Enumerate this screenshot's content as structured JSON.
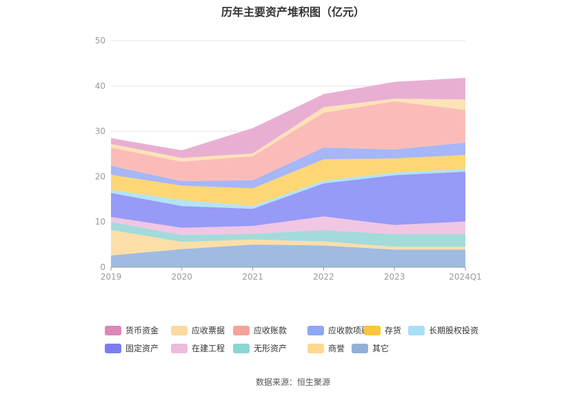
{
  "title": "历年主要资产堆积图（亿元）",
  "source": "数据来源：恒生聚源",
  "chart_data": {
    "type": "area",
    "stacked": true,
    "title": "历年主要资产堆积图（亿元）",
    "xlabel": "",
    "ylabel": "",
    "categories": [
      "2019",
      "2020",
      "2021",
      "2022",
      "2023",
      "2024Q1"
    ],
    "ylim": [
      0,
      50
    ],
    "yticks": [
      0,
      10,
      20,
      30,
      40,
      50
    ],
    "grid": true,
    "legend_position": "bottom",
    "series": [
      {
        "name": "其它",
        "color": "#9ab7e0",
        "values": [
          2.6,
          4.0,
          5.0,
          4.8,
          3.9,
          3.9
        ]
      },
      {
        "name": "商誉",
        "color": "#fcdca3",
        "values": [
          5.6,
          1.6,
          1.1,
          0.9,
          0.6,
          0.6
        ]
      },
      {
        "name": "无形资产",
        "color": "#9ed9d8",
        "values": [
          1.8,
          1.5,
          1.3,
          2.5,
          2.8,
          2.8
        ]
      },
      {
        "name": "在建工程",
        "color": "#efc3e1",
        "values": [
          1.1,
          1.6,
          1.7,
          3.0,
          2.0,
          2.8
        ]
      },
      {
        "name": "固定资产",
        "color": "#9195f5",
        "values": [
          5.3,
          4.8,
          3.8,
          7.3,
          11.0,
          11.0
        ]
      },
      {
        "name": "长期股权投资",
        "color": "#aee1f5",
        "values": [
          0.7,
          1.3,
          0.6,
          0.6,
          0.6,
          0.6
        ]
      },
      {
        "name": "存货",
        "color": "#fdd46f",
        "values": [
          3.3,
          3.2,
          3.9,
          4.7,
          3.1,
          3.1
        ]
      },
      {
        "name": "应收款项融资",
        "color": "#a2b2f5",
        "values": [
          2.0,
          1.0,
          1.8,
          2.6,
          2.0,
          2.7
        ]
      },
      {
        "name": "应收账款",
        "color": "#fbb8b5",
        "values": [
          4.0,
          4.3,
          5.3,
          7.7,
          10.6,
          7.2
        ]
      },
      {
        "name": "应收票据",
        "color": "#fde0b3",
        "values": [
          0.8,
          0.8,
          0.6,
          1.2,
          0.6,
          2.3
        ]
      },
      {
        "name": "货币资金",
        "color": "#e8abd1",
        "values": [
          1.3,
          1.7,
          5.6,
          2.9,
          3.7,
          4.8
        ]
      }
    ]
  },
  "legend": [
    {
      "label": "货币资金",
      "color": "#dc86bd"
    },
    {
      "label": "应收票据",
      "color": "#fcd9a0"
    },
    {
      "label": "应收账款",
      "color": "#f7a19b"
    },
    {
      "label": "应收款项融资",
      "color": "#8ca7f5"
    },
    {
      "label": "存货",
      "color": "#fcc53d"
    },
    {
      "label": "长期股权投资",
      "color": "#a9def7"
    },
    {
      "label": "固定资产",
      "color": "#7b7ef2"
    },
    {
      "label": "在建工程",
      "color": "#ebbcdc"
    },
    {
      "label": "无形资产",
      "color": "#8ad6d4"
    },
    {
      "label": "商誉",
      "color": "#fdd98e"
    },
    {
      "label": "其它",
      "color": "#92afd9"
    }
  ]
}
